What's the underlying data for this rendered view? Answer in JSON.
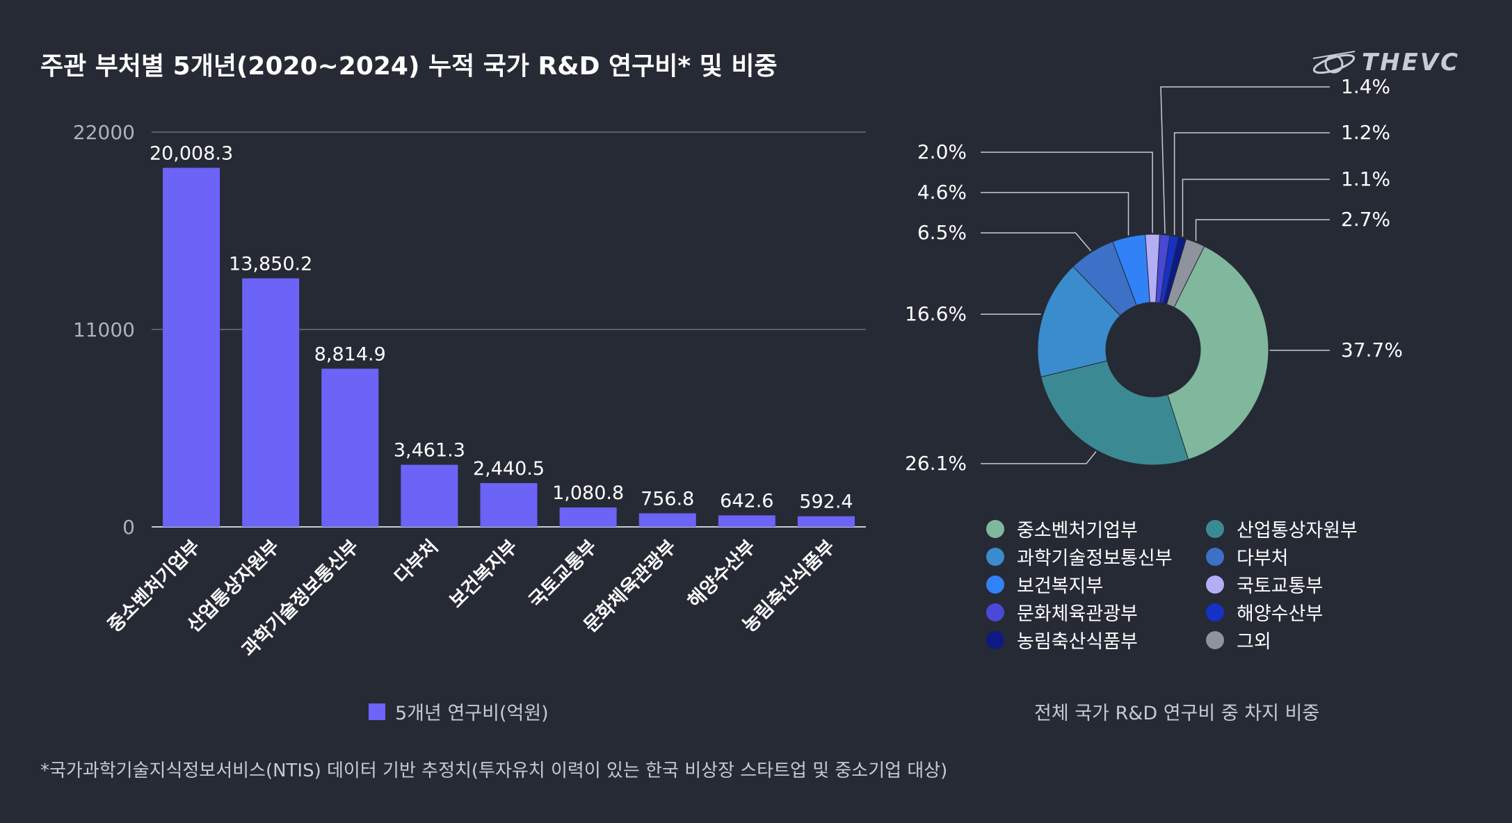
{
  "title": "주관 부처별 5개년(2020~2024) 누적 국가 R&D 연구비* 및 비중",
  "logo": {
    "text": "THEVC"
  },
  "footnote": "*국가과학기술지식정보서비스(NTIS) 데이터 기반 추정치(투자유치 이력이 있는 한국 비상장 스타트업 및 중소기업 대상)",
  "chart_data": [
    {
      "type": "bar",
      "categories": [
        "중소벤처기업부",
        "산업통상자원부",
        "과학기술정보통신부",
        "다부처",
        "보건복지부",
        "국토교통부",
        "문화체육관광부",
        "해양수산부",
        "농림축산식품부"
      ],
      "values": [
        20008.3,
        13850.2,
        8814.9,
        3461.3,
        2440.5,
        1080.8,
        756.8,
        642.6,
        592.4
      ],
      "value_labels": [
        "20,008.3",
        "13,850.2",
        "8,814.9",
        "3,461.3",
        "2,440.5",
        "1,080.8",
        "756.8",
        "642.6",
        "592.4"
      ],
      "yticks": [
        "0",
        "11000",
        "22000"
      ],
      "ylim": [
        0,
        22000
      ],
      "legend": "5개년 연구비(억원)",
      "color": "#6c63f7",
      "grid": true
    },
    {
      "type": "pie",
      "donut": true,
      "caption": "전체 국가 R&D 연구비 중 차지 비중",
      "slices": [
        {
          "name": "중소벤처기업부",
          "value": 37.7,
          "label": "37.7%",
          "color": "#7fb89d"
        },
        {
          "name": "산업통상자원부",
          "value": 26.1,
          "label": "26.1%",
          "color": "#3b8a93"
        },
        {
          "name": "과학기술정보통신부",
          "value": 16.6,
          "label": "16.6%",
          "color": "#3a8ccc"
        },
        {
          "name": "다부처",
          "value": 6.5,
          "label": "6.5%",
          "color": "#3c71c7"
        },
        {
          "name": "보건복지부",
          "value": 4.6,
          "label": "4.6%",
          "color": "#3182f6"
        },
        {
          "name": "국토교통부",
          "value": 2.0,
          "label": "2.0%",
          "color": "#b3aef6"
        },
        {
          "name": "문화체육관광부",
          "value": 1.4,
          "label": "1.4%",
          "color": "#4a48d6"
        },
        {
          "name": "해양수산부",
          "value": 1.2,
          "label": "1.2%",
          "color": "#1631c5"
        },
        {
          "name": "농림축산식품부",
          "value": 1.1,
          "label": "1.1%",
          "color": "#0d1a86"
        },
        {
          "name": "그외",
          "value": 2.7,
          "label": "2.7%",
          "color": "#8e939c"
        }
      ]
    }
  ]
}
